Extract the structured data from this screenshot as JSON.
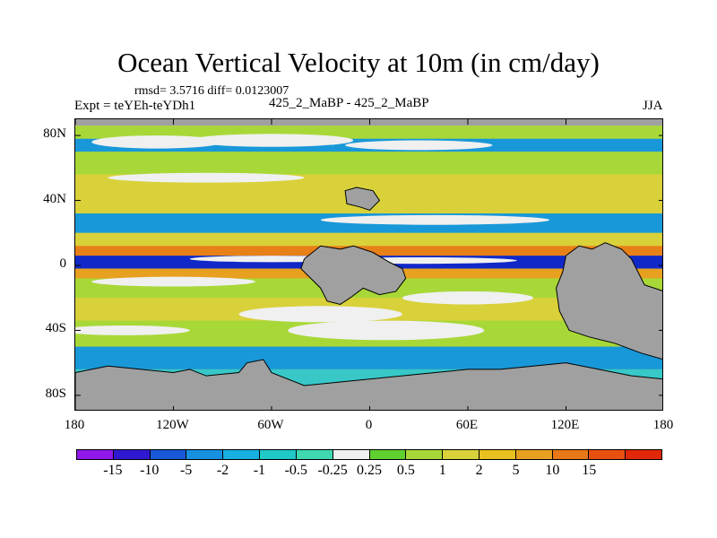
{
  "title": "Ocean Vertical Velocity at 10m (in cm/day)",
  "stats": "rmsd= 3.5716 diff= 0.0123007",
  "expt": "Expt = teYEh-teYDh1",
  "case": "425_2_MaBP - 425_2_MaBP",
  "season": "JJA",
  "map": {
    "projection": "cylindrical equidistant",
    "lon_range": [
      -180,
      180
    ],
    "lat_range": [
      -90,
      90
    ],
    "land_color": "#a0a0a0",
    "y_ticks": [
      {
        "lat": 80,
        "label": "80N"
      },
      {
        "lat": 40,
        "label": "40N"
      },
      {
        "lat": 0,
        "label": "0"
      },
      {
        "lat": -40,
        "label": "40S"
      },
      {
        "lat": -80,
        "label": "80S"
      }
    ],
    "x_ticks": [
      {
        "lon": -180,
        "label": "180"
      },
      {
        "lon": -120,
        "label": "120W"
      },
      {
        "lon": -60,
        "label": "60W"
      },
      {
        "lon": 0,
        "label": "0"
      },
      {
        "lon": 60,
        "label": "60E"
      },
      {
        "lon": 120,
        "label": "120E"
      },
      {
        "lon": 180,
        "label": "180"
      }
    ],
    "bands": [
      {
        "lat_top": 90,
        "lat_bot": 86,
        "color": "#a0a0a0"
      },
      {
        "lat_top": 86,
        "lat_bot": 78,
        "color": "#a8d838"
      },
      {
        "lat_top": 78,
        "lat_bot": 70,
        "color": "#1898d8"
      },
      {
        "lat_top": 70,
        "lat_bot": 56,
        "color": "#a8d838"
      },
      {
        "lat_top": 56,
        "lat_bot": 44,
        "color": "#d8d13a"
      },
      {
        "lat_top": 44,
        "lat_bot": 32,
        "color": "#d8d13a"
      },
      {
        "lat_top": 32,
        "lat_bot": 20,
        "color": "#1898d8"
      },
      {
        "lat_top": 20,
        "lat_bot": 12,
        "color": "#d8d13a"
      },
      {
        "lat_top": 12,
        "lat_bot": 6,
        "color": "#e88018"
      },
      {
        "lat_top": 6,
        "lat_bot": -2,
        "color": "#1028c8"
      },
      {
        "lat_top": -2,
        "lat_bot": -8,
        "color": "#e8a020"
      },
      {
        "lat_top": -8,
        "lat_bot": -20,
        "color": "#a8d838"
      },
      {
        "lat_top": -20,
        "lat_bot": -34,
        "color": "#d8d13a"
      },
      {
        "lat_top": -34,
        "lat_bot": -50,
        "color": "#a8d838"
      },
      {
        "lat_top": -50,
        "lat_bot": -64,
        "color": "#1898d8"
      },
      {
        "lat_top": -64,
        "lat_bot": -74,
        "color": "#38c8c8"
      },
      {
        "lat_top": -74,
        "lat_bot": -90,
        "color": "#a0a0a0"
      }
    ],
    "white_patches": [
      {
        "lon": -130,
        "lat": 76,
        "w": 40,
        "h": 4
      },
      {
        "lon": -60,
        "lat": 77,
        "w": 50,
        "h": 4
      },
      {
        "lon": 30,
        "lat": 74,
        "w": 45,
        "h": 3
      },
      {
        "lon": -100,
        "lat": 54,
        "w": 60,
        "h": 3
      },
      {
        "lon": 40,
        "lat": 28,
        "w": 70,
        "h": 3
      },
      {
        "lon": -60,
        "lat": 4,
        "w": 50,
        "h": 2
      },
      {
        "lon": 30,
        "lat": 3,
        "w": 60,
        "h": 2
      },
      {
        "lon": -120,
        "lat": -10,
        "w": 50,
        "h": 3
      },
      {
        "lon": -30,
        "lat": -30,
        "w": 50,
        "h": 5
      },
      {
        "lon": 10,
        "lat": -40,
        "w": 60,
        "h": 6
      },
      {
        "lon": 60,
        "lat": -20,
        "w": 40,
        "h": 4
      },
      {
        "lon": -150,
        "lat": -40,
        "w": 40,
        "h": 3
      }
    ],
    "land": [
      {
        "name": "north-cap",
        "points": [
          [
            -180,
            -86
          ],
          [
            180,
            -86
          ],
          [
            180,
            -90
          ],
          [
            -180,
            -90
          ]
        ]
      },
      {
        "name": "antarctica",
        "points": [
          [
            -180,
            -66
          ],
          [
            -160,
            -62
          ],
          [
            -140,
            -64
          ],
          [
            -120,
            -66
          ],
          [
            -110,
            -64
          ],
          [
            -100,
            -68
          ],
          [
            -80,
            -66
          ],
          [
            -75,
            -60
          ],
          [
            -65,
            -58
          ],
          [
            -60,
            -66
          ],
          [
            -40,
            -74
          ],
          [
            -20,
            -72
          ],
          [
            0,
            -70
          ],
          [
            20,
            -68
          ],
          [
            40,
            -66
          ],
          [
            60,
            -64
          ],
          [
            80,
            -64
          ],
          [
            100,
            -62
          ],
          [
            120,
            -60
          ],
          [
            140,
            -64
          ],
          [
            160,
            -68
          ],
          [
            180,
            -70
          ],
          [
            180,
            -90
          ],
          [
            -180,
            -90
          ]
        ]
      },
      {
        "name": "north-continent",
        "points": [
          [
            -15,
            46
          ],
          [
            -8,
            48
          ],
          [
            2,
            46
          ],
          [
            6,
            40
          ],
          [
            0,
            34
          ],
          [
            -6,
            36
          ],
          [
            -14,
            38
          ]
        ]
      },
      {
        "name": "central-continent",
        "points": [
          [
            -40,
            4
          ],
          [
            -30,
            12
          ],
          [
            -18,
            10
          ],
          [
            -10,
            12
          ],
          [
            2,
            8
          ],
          [
            12,
            2
          ],
          [
            20,
            -2
          ],
          [
            22,
            -8
          ],
          [
            16,
            -16
          ],
          [
            6,
            -18
          ],
          [
            -4,
            -14
          ],
          [
            -12,
            -20
          ],
          [
            -18,
            -24
          ],
          [
            -26,
            -22
          ],
          [
            -30,
            -14
          ],
          [
            -36,
            -8
          ],
          [
            -42,
            -2
          ]
        ]
      },
      {
        "name": "east-continent",
        "points": [
          [
            120,
            6
          ],
          [
            128,
            12
          ],
          [
            136,
            10
          ],
          [
            144,
            14
          ],
          [
            154,
            10
          ],
          [
            160,
            4
          ],
          [
            164,
            -4
          ],
          [
            168,
            -12
          ],
          [
            180,
            -16
          ],
          [
            180,
            -58
          ],
          [
            166,
            -54
          ],
          [
            150,
            -48
          ],
          [
            134,
            -44
          ],
          [
            122,
            -40
          ],
          [
            116,
            -28
          ],
          [
            114,
            -14
          ],
          [
            118,
            -4
          ]
        ]
      }
    ]
  },
  "colorbar": {
    "colors": [
      "#9018e8",
      "#3018d0",
      "#1858d8",
      "#1890e0",
      "#18b0e0",
      "#20c8c8",
      "#40d8b0",
      "#f0f0f0",
      "#60d030",
      "#a8d838",
      "#d8d13a",
      "#e8c020",
      "#e8a020",
      "#e87818",
      "#e85010",
      "#e02808"
    ],
    "labels": [
      "-15",
      "-10",
      "-5",
      "-2",
      "-1",
      "-0.5",
      "-0.25",
      "0.25",
      "0.5",
      "1",
      "2",
      "5",
      "10",
      "15"
    ]
  }
}
